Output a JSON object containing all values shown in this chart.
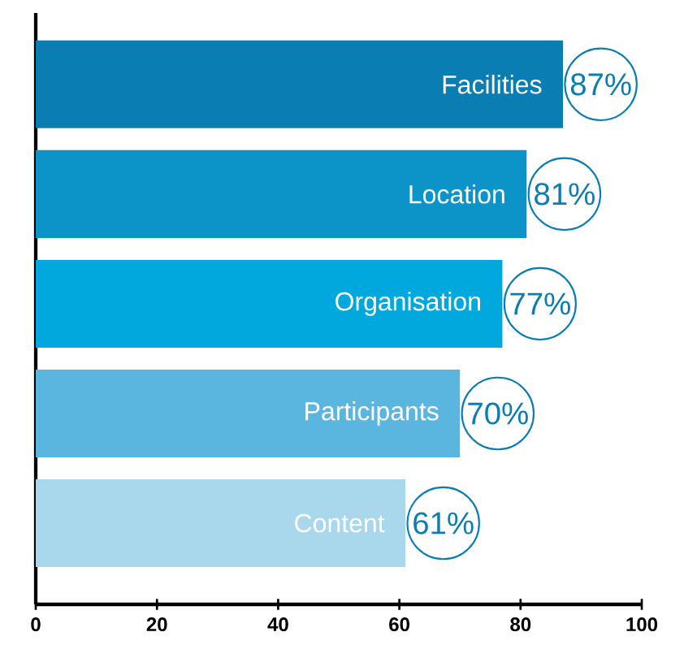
{
  "chart_data": {
    "type": "bar",
    "orientation": "horizontal",
    "categories": [
      "Facilities",
      "Location",
      "Organisation",
      "Participants",
      "Content"
    ],
    "values": [
      87,
      81,
      77,
      70,
      61
    ],
    "colors": [
      "#0a7db3",
      "#0c93c8",
      "#00a8dd",
      "#5ab6df",
      "#a9d7ec"
    ],
    "value_labels": [
      "87%",
      "81%",
      "77%",
      "70%",
      "61%"
    ],
    "xlim": [
      0,
      100
    ],
    "xticks": [
      0,
      20,
      40,
      60,
      80,
      100
    ],
    "tick_labels": "x",
    "grid": false
  }
}
